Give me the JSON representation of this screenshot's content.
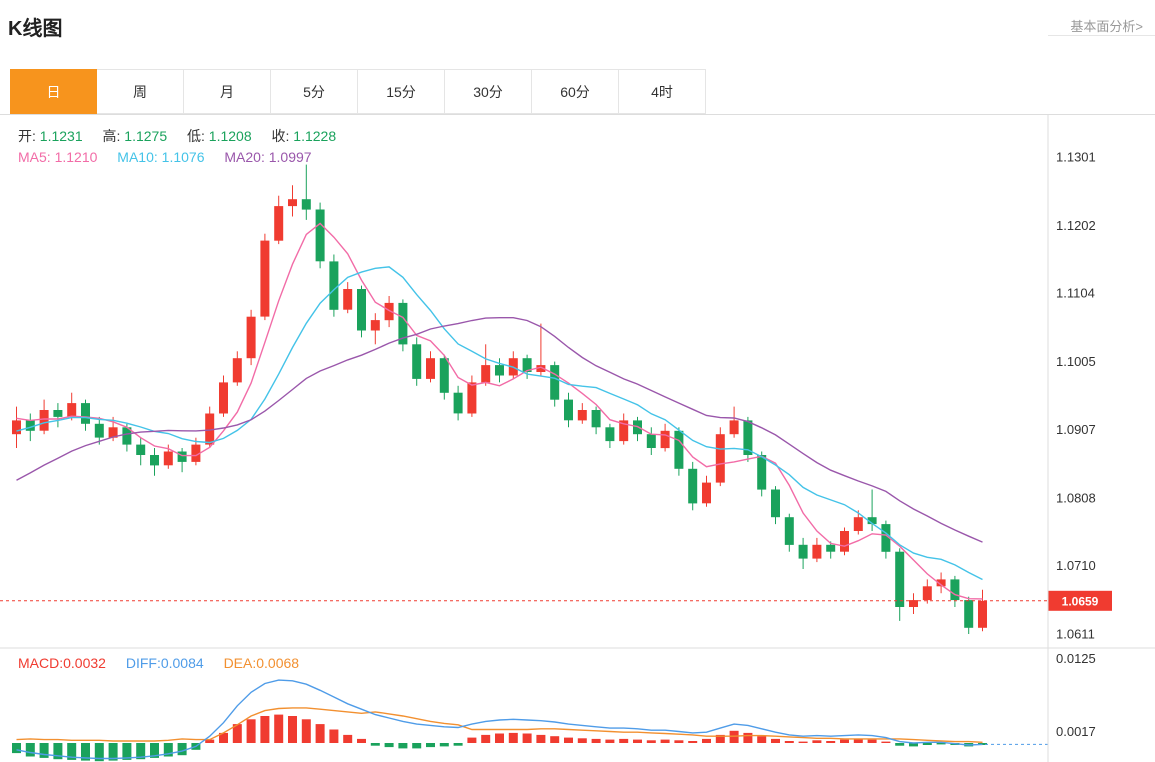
{
  "header": {
    "title": "K线图",
    "link": "基本面分析>"
  },
  "tabs": [
    {
      "label": "日",
      "active": true
    },
    {
      "label": "周",
      "active": false
    },
    {
      "label": "月",
      "active": false
    },
    {
      "label": "5分",
      "active": false
    },
    {
      "label": "15分",
      "active": false
    },
    {
      "label": "30分",
      "active": false
    },
    {
      "label": "60分",
      "active": false
    },
    {
      "label": "4时",
      "active": false
    }
  ],
  "legend": {
    "ohlc": [
      {
        "label": "开:",
        "value": "1.1231"
      },
      {
        "label": "高:",
        "value": "1.1275"
      },
      {
        "label": "低:",
        "value": "1.1208"
      },
      {
        "label": "收:",
        "value": "1.1228"
      }
    ],
    "ma": [
      {
        "label": "MA5:",
        "value": "1.1210"
      },
      {
        "label": "MA10:",
        "value": "1.1076"
      },
      {
        "label": "MA20:",
        "value": "1.0997"
      }
    ],
    "macd": [
      {
        "label": "MACD:",
        "value": "0.0032"
      },
      {
        "label": "DIFF:",
        "value": "0.0084"
      },
      {
        "label": "DEA:",
        "value": "0.0068"
      }
    ]
  },
  "colors": {
    "up": "#f03b30",
    "down": "#1aa25c",
    "ma5": "#f26ca7",
    "ma10": "#44c3e8",
    "ma20": "#9a57ab",
    "diff": "#4f9ce8",
    "dea": "#f29030",
    "accent": "#f7941d",
    "axis": "#dddddd",
    "price_line": "#f03b30"
  },
  "chart_data": {
    "type": "candlestick",
    "title": "K线图 (日)",
    "main": {
      "y_ticks": [
        "1.1301",
        "1.1202",
        "1.1104",
        "1.1005",
        "1.0907",
        "1.0808",
        "1.0710",
        "1.0611"
      ],
      "y_range": [
        1.0611,
        1.1301
      ],
      "current_price": 1.0659,
      "current_price_label": "1.0659",
      "ma_periods": [
        5,
        10,
        20
      ],
      "ma_seed": [
        1.068,
        1.0695,
        1.071,
        1.0725,
        1.074,
        1.0755,
        1.077,
        1.0785,
        1.08,
        1.0815,
        1.083,
        1.085,
        1.087,
        1.089,
        1.0905,
        1.0915,
        1.092,
        1.0924,
        1.0926,
        1.0925
      ],
      "candles": [
        [
          1.09,
          1.094,
          1.088,
          1.092
        ],
        [
          1.092,
          1.093,
          1.089,
          1.0905
        ],
        [
          1.0905,
          1.095,
          1.09,
          1.0935
        ],
        [
          1.0935,
          1.0945,
          1.091,
          1.0925
        ],
        [
          1.0925,
          1.096,
          1.092,
          1.0945
        ],
        [
          1.0945,
          1.095,
          1.0905,
          1.0915
        ],
        [
          1.0915,
          1.0925,
          1.0885,
          1.0895
        ],
        [
          1.0895,
          1.0925,
          1.089,
          1.091
        ],
        [
          1.091,
          1.0915,
          1.0875,
          1.0885
        ],
        [
          1.0885,
          1.0895,
          1.0855,
          1.087
        ],
        [
          1.087,
          1.088,
          1.084,
          1.0855
        ],
        [
          1.0855,
          1.0885,
          1.085,
          1.0875
        ],
        [
          1.0875,
          1.088,
          1.0845,
          1.086
        ],
        [
          1.086,
          1.0895,
          1.0855,
          1.0885
        ],
        [
          1.0885,
          1.094,
          1.088,
          1.093
        ],
        [
          1.093,
          1.0985,
          1.0925,
          1.0975
        ],
        [
          1.0975,
          1.102,
          1.097,
          1.101
        ],
        [
          1.101,
          1.108,
          1.1,
          1.107
        ],
        [
          1.107,
          1.119,
          1.1065,
          1.118
        ],
        [
          1.118,
          1.1245,
          1.1175,
          1.123
        ],
        [
          1.123,
          1.126,
          1.1215,
          1.124
        ],
        [
          1.124,
          1.129,
          1.121,
          1.1225
        ],
        [
          1.1225,
          1.1235,
          1.114,
          1.115
        ],
        [
          1.115,
          1.116,
          1.107,
          1.108
        ],
        [
          1.108,
          1.112,
          1.1075,
          1.111
        ],
        [
          1.111,
          1.1115,
          1.104,
          1.105
        ],
        [
          1.105,
          1.1075,
          1.103,
          1.1065
        ],
        [
          1.1065,
          1.11,
          1.1055,
          1.109
        ],
        [
          1.109,
          1.1095,
          1.102,
          1.103
        ],
        [
          1.103,
          1.104,
          1.097,
          1.098
        ],
        [
          1.098,
          1.102,
          1.0975,
          1.101
        ],
        [
          1.101,
          1.1015,
          1.095,
          1.096
        ],
        [
          1.096,
          1.097,
          1.092,
          1.093
        ],
        [
          1.093,
          1.0985,
          1.0925,
          1.0975
        ],
        [
          1.0975,
          1.103,
          1.097,
          1.1
        ],
        [
          1.1,
          1.101,
          1.0975,
          1.0985
        ],
        [
          1.0985,
          1.102,
          1.098,
          1.101
        ],
        [
          1.101,
          1.1015,
          1.098,
          1.099
        ],
        [
          1.099,
          1.106,
          1.0985,
          1.1
        ],
        [
          1.1,
          1.1005,
          1.094,
          1.095
        ],
        [
          1.095,
          1.096,
          1.091,
          1.092
        ],
        [
          1.092,
          1.0945,
          1.0915,
          1.0935
        ],
        [
          1.0935,
          1.094,
          1.09,
          1.091
        ],
        [
          1.091,
          1.0915,
          1.088,
          1.089
        ],
        [
          1.089,
          1.093,
          1.0885,
          1.092
        ],
        [
          1.092,
          1.0925,
          1.089,
          1.09
        ],
        [
          1.09,
          1.091,
          1.087,
          1.088
        ],
        [
          1.088,
          1.0915,
          1.0875,
          1.0905
        ],
        [
          1.0905,
          1.091,
          1.084,
          1.085
        ],
        [
          1.085,
          1.086,
          1.079,
          1.08
        ],
        [
          1.08,
          1.084,
          1.0795,
          1.083
        ],
        [
          1.083,
          1.091,
          1.0825,
          1.09
        ],
        [
          1.09,
          1.094,
          1.0895,
          1.092
        ],
        [
          1.092,
          1.0925,
          1.086,
          1.087
        ],
        [
          1.087,
          1.0875,
          1.081,
          1.082
        ],
        [
          1.082,
          1.0825,
          1.077,
          1.078
        ],
        [
          1.078,
          1.0785,
          1.073,
          1.074
        ],
        [
          1.074,
          1.075,
          1.0705,
          1.072
        ],
        [
          1.072,
          1.075,
          1.0715,
          1.074
        ],
        [
          1.074,
          1.0745,
          1.072,
          1.073
        ],
        [
          1.073,
          1.0765,
          1.0725,
          1.076
        ],
        [
          1.076,
          1.079,
          1.0755,
          1.078
        ],
        [
          1.078,
          1.082,
          1.076,
          1.077
        ],
        [
          1.077,
          1.0775,
          1.072,
          1.073
        ],
        [
          1.073,
          1.0735,
          1.063,
          1.065
        ],
        [
          1.065,
          1.067,
          1.064,
          1.066
        ],
        [
          1.066,
          1.069,
          1.0655,
          1.068
        ],
        [
          1.068,
          1.07,
          1.067,
          1.069
        ],
        [
          1.069,
          1.0695,
          1.065,
          1.066
        ],
        [
          1.066,
          1.0665,
          1.0611,
          1.062
        ],
        [
          1.062,
          1.0675,
          1.0615,
          1.0659
        ]
      ]
    },
    "macd": {
      "y_ticks": [
        "0.0125",
        "0.0017"
      ],
      "hist": [
        -0.0015,
        -0.002,
        -0.0022,
        -0.0024,
        -0.0025,
        -0.0026,
        -0.0027,
        -0.0026,
        -0.0025,
        -0.0024,
        -0.0022,
        -0.002,
        -0.0018,
        -0.001,
        0.0005,
        0.0015,
        0.0028,
        0.0035,
        0.004,
        0.0042,
        0.004,
        0.0035,
        0.0028,
        0.002,
        0.0012,
        0.0006,
        -0.0004,
        -0.0006,
        -0.0008,
        -0.0008,
        -0.0006,
        -0.0005,
        -0.0004,
        0.0008,
        0.0012,
        0.0014,
        0.0015,
        0.0014,
        0.0012,
        0.001,
        0.0008,
        0.0007,
        0.0006,
        0.0005,
        0.0006,
        0.0005,
        0.0004,
        0.0005,
        0.0004,
        0.0003,
        0.0006,
        0.0012,
        0.0018,
        0.0015,
        0.001,
        0.0006,
        0.0003,
        0.0002,
        0.0004,
        0.0003,
        0.0005,
        0.0006,
        0.0005,
        0.0002,
        -0.0004,
        -0.0005,
        -0.0003,
        -0.0002,
        -0.0003,
        -0.0005,
        -0.0003
      ],
      "diff": [
        -0.001,
        -0.0014,
        -0.0017,
        -0.0019,
        -0.0021,
        -0.0022,
        -0.0023,
        -0.0023,
        -0.0022,
        -0.0021,
        -0.0019,
        -0.0016,
        -0.0012,
        -0.0005,
        0.001,
        0.003,
        0.0055,
        0.0075,
        0.0088,
        0.0093,
        0.0092,
        0.0087,
        0.0078,
        0.0068,
        0.0058,
        0.005,
        0.0042,
        0.0037,
        0.0032,
        0.0028,
        0.0026,
        0.0024,
        0.0023,
        0.0028,
        0.0032,
        0.0034,
        0.0035,
        0.0034,
        0.0033,
        0.0031,
        0.0028,
        0.0026,
        0.0024,
        0.0022,
        0.0022,
        0.0021,
        0.0019,
        0.0019,
        0.0017,
        0.0015,
        0.0016,
        0.0022,
        0.0028,
        0.0026,
        0.0021,
        0.0016,
        0.0012,
        0.001,
        0.0011,
        0.001,
        0.0011,
        0.0012,
        0.0011,
        0.0008,
        0.0002,
        0.0,
        0.0001,
        0.0001,
        -0.0001,
        -0.0003,
        -0.0002
      ]
    }
  }
}
